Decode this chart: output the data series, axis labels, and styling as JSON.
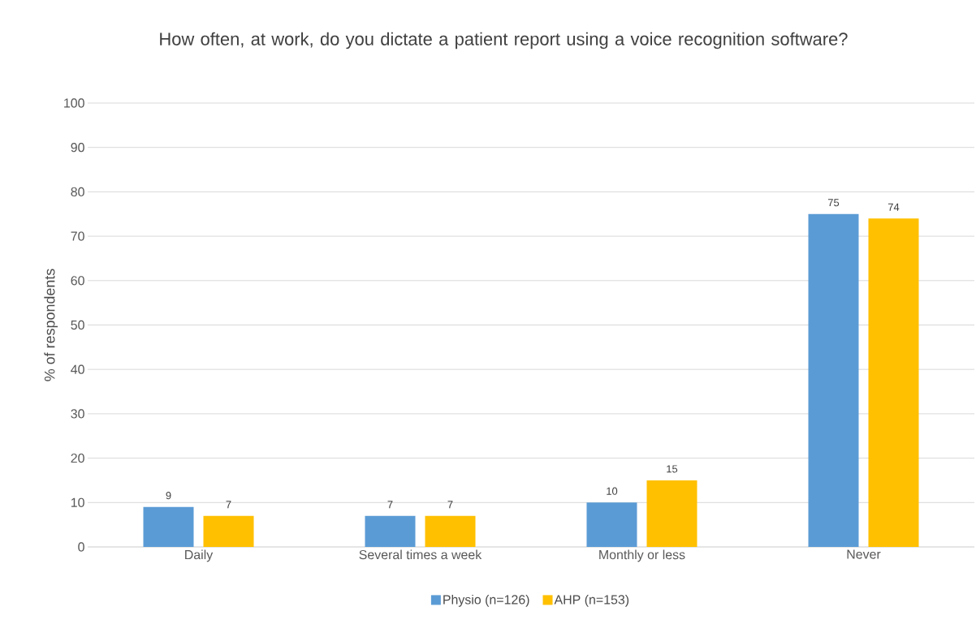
{
  "chart_data": {
    "type": "bar",
    "title": "How often, at work, do you dictate a patient report using a voice recognition software?",
    "ylabel": "% of respondents",
    "categories": [
      "Daily",
      "Several times a week",
      "Monthly or less",
      "Never"
    ],
    "series": [
      {
        "name": "Physio (n=126)",
        "color": "#5b9bd5",
        "values": [
          9,
          7,
          10,
          75
        ]
      },
      {
        "name": "AHP (n=153)",
        "color": "#ffc000",
        "values": [
          7,
          7,
          15,
          74
        ]
      }
    ],
    "ylim": [
      0,
      100
    ],
    "yticks": [
      0,
      10,
      20,
      30,
      40,
      50,
      60,
      70,
      80,
      90,
      100
    ],
    "grid": "y",
    "legend": "bottom",
    "data_labels": true
  }
}
